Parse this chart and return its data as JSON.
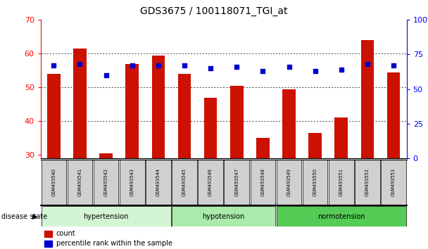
{
  "title": "GDS3675 / 100118071_TGI_at",
  "samples": [
    "GSM493540",
    "GSM493541",
    "GSM493542",
    "GSM493543",
    "GSM493544",
    "GSM493545",
    "GSM493546",
    "GSM493547",
    "GSM493548",
    "GSM493549",
    "GSM493550",
    "GSM493551",
    "GSM493552",
    "GSM493553"
  ],
  "count_values": [
    54.0,
    61.5,
    30.5,
    57.0,
    59.5,
    54.0,
    47.0,
    50.5,
    35.0,
    49.5,
    36.5,
    41.0,
    64.0,
    54.5
  ],
  "percentile_values": [
    67,
    68,
    60,
    67,
    67,
    67,
    65,
    66,
    63,
    66,
    63,
    64,
    68,
    67
  ],
  "ylim_left": [
    29,
    70
  ],
  "ylim_right": [
    0,
    100
  ],
  "yticks_left": [
    30,
    40,
    50,
    60,
    70
  ],
  "yticks_right": [
    0,
    25,
    50,
    75,
    100
  ],
  "bar_color": "#cc1100",
  "dot_color": "#0000cc",
  "group_labels": [
    "hypertension",
    "hypotension",
    "normotension"
  ],
  "group_starts": [
    0,
    5,
    9
  ],
  "group_ends": [
    5,
    9,
    14
  ],
  "group_colors": [
    "#d4f5d4",
    "#aaeaaa",
    "#55cc55"
  ],
  "disease_state_label": "disease state",
  "legend_count_label": "count",
  "legend_percentile_label": "percentile rank within the sample",
  "background_color": "#ffffff",
  "grid_color": "#000000",
  "title_fontsize": 10,
  "tick_fontsize": 7,
  "bar_width": 0.5
}
